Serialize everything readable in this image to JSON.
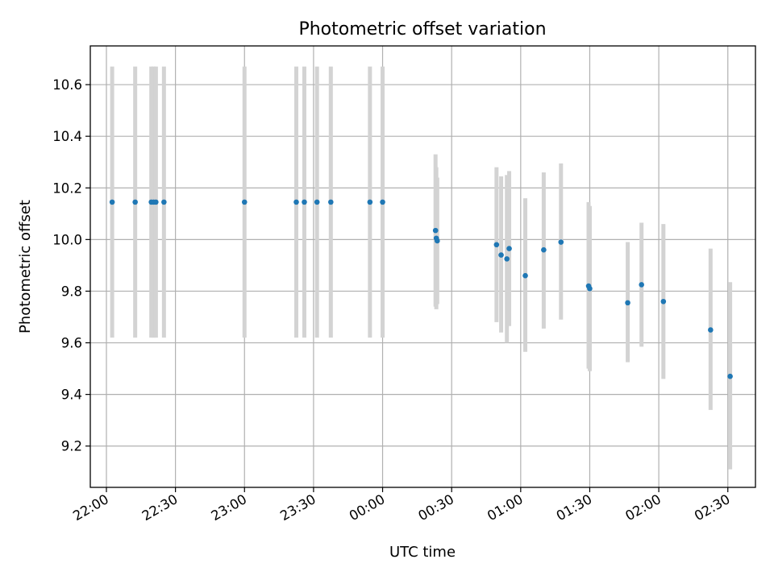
{
  "chart_data": {
    "type": "scatter",
    "title": "Photometric offset variation",
    "xlabel": "UTC time",
    "ylabel": "Photometric offset",
    "x_axis_type": "time",
    "xlim": [
      "21:53",
      "02:42"
    ],
    "ylim": [
      9.04,
      10.75
    ],
    "grid": true,
    "x_ticks": [
      "22:00",
      "22:30",
      "23:00",
      "23:30",
      "00:00",
      "00:30",
      "01:00",
      "01:30",
      "02:00",
      "02:30"
    ],
    "y_ticks": [
      9.2,
      9.4,
      9.6,
      9.8,
      10.0,
      10.2,
      10.4,
      10.6
    ],
    "y_tick_labels": [
      "9.2",
      "9.4",
      "9.6",
      "9.8",
      "10.0",
      "10.2",
      "10.4",
      "10.6"
    ],
    "marker_color": "#1f77b4",
    "errorbar_color": "#d3d3d3",
    "points": [
      {
        "t": "22:02:30",
        "y": 10.145,
        "lo": 9.62,
        "hi": 10.67
      },
      {
        "t": "22:12:30",
        "y": 10.145,
        "lo": 9.62,
        "hi": 10.67
      },
      {
        "t": "22:19:30",
        "y": 10.145,
        "lo": 9.62,
        "hi": 10.67
      },
      {
        "t": "22:20:30",
        "y": 10.145,
        "lo": 9.62,
        "hi": 10.67
      },
      {
        "t": "22:21:30",
        "y": 10.145,
        "lo": 9.62,
        "hi": 10.67
      },
      {
        "t": "22:25:00",
        "y": 10.145,
        "lo": 9.62,
        "hi": 10.67
      },
      {
        "t": "23:00:00",
        "y": 10.145,
        "lo": 9.62,
        "hi": 10.67
      },
      {
        "t": "23:22:30",
        "y": 10.145,
        "lo": 9.62,
        "hi": 10.67
      },
      {
        "t": "23:26:00",
        "y": 10.145,
        "lo": 9.62,
        "hi": 10.67
      },
      {
        "t": "23:31:30",
        "y": 10.145,
        "lo": 9.62,
        "hi": 10.67
      },
      {
        "t": "23:37:30",
        "y": 10.145,
        "lo": 9.62,
        "hi": 10.67
      },
      {
        "t": "23:54:30",
        "y": 10.145,
        "lo": 9.62,
        "hi": 10.67
      },
      {
        "t": "00:00:00",
        "y": 10.145,
        "lo": 9.62,
        "hi": 10.67
      },
      {
        "t": "00:23:00",
        "y": 10.035,
        "lo": 9.74,
        "hi": 10.33
      },
      {
        "t": "00:23:20",
        "y": 10.005,
        "lo": 9.73,
        "hi": 10.28
      },
      {
        "t": "00:23:45",
        "y": 9.995,
        "lo": 9.75,
        "hi": 10.24
      },
      {
        "t": "00:49:30",
        "y": 9.98,
        "lo": 9.68,
        "hi": 10.28
      },
      {
        "t": "00:51:30",
        "y": 9.94,
        "lo": 9.64,
        "hi": 10.245
      },
      {
        "t": "00:54:00",
        "y": 9.925,
        "lo": 9.6,
        "hi": 10.25
      },
      {
        "t": "00:55:00",
        "y": 9.965,
        "lo": 9.665,
        "hi": 10.265
      },
      {
        "t": "01:02:00",
        "y": 9.86,
        "lo": 9.565,
        "hi": 10.16
      },
      {
        "t": "01:10:00",
        "y": 9.96,
        "lo": 9.655,
        "hi": 10.26
      },
      {
        "t": "01:17:30",
        "y": 9.99,
        "lo": 9.69,
        "hi": 10.295
      },
      {
        "t": "01:29:30",
        "y": 9.82,
        "lo": 9.5,
        "hi": 10.145
      },
      {
        "t": "01:30:00",
        "y": 9.81,
        "lo": 9.49,
        "hi": 10.13
      },
      {
        "t": "01:46:30",
        "y": 9.755,
        "lo": 9.525,
        "hi": 9.99
      },
      {
        "t": "01:52:30",
        "y": 9.825,
        "lo": 9.585,
        "hi": 10.065
      },
      {
        "t": "02:02:00",
        "y": 9.76,
        "lo": 9.46,
        "hi": 10.06
      },
      {
        "t": "02:22:30",
        "y": 9.65,
        "lo": 9.34,
        "hi": 9.965
      },
      {
        "t": "02:31:00",
        "y": 9.47,
        "lo": 9.11,
        "hi": 9.835
      }
    ]
  }
}
